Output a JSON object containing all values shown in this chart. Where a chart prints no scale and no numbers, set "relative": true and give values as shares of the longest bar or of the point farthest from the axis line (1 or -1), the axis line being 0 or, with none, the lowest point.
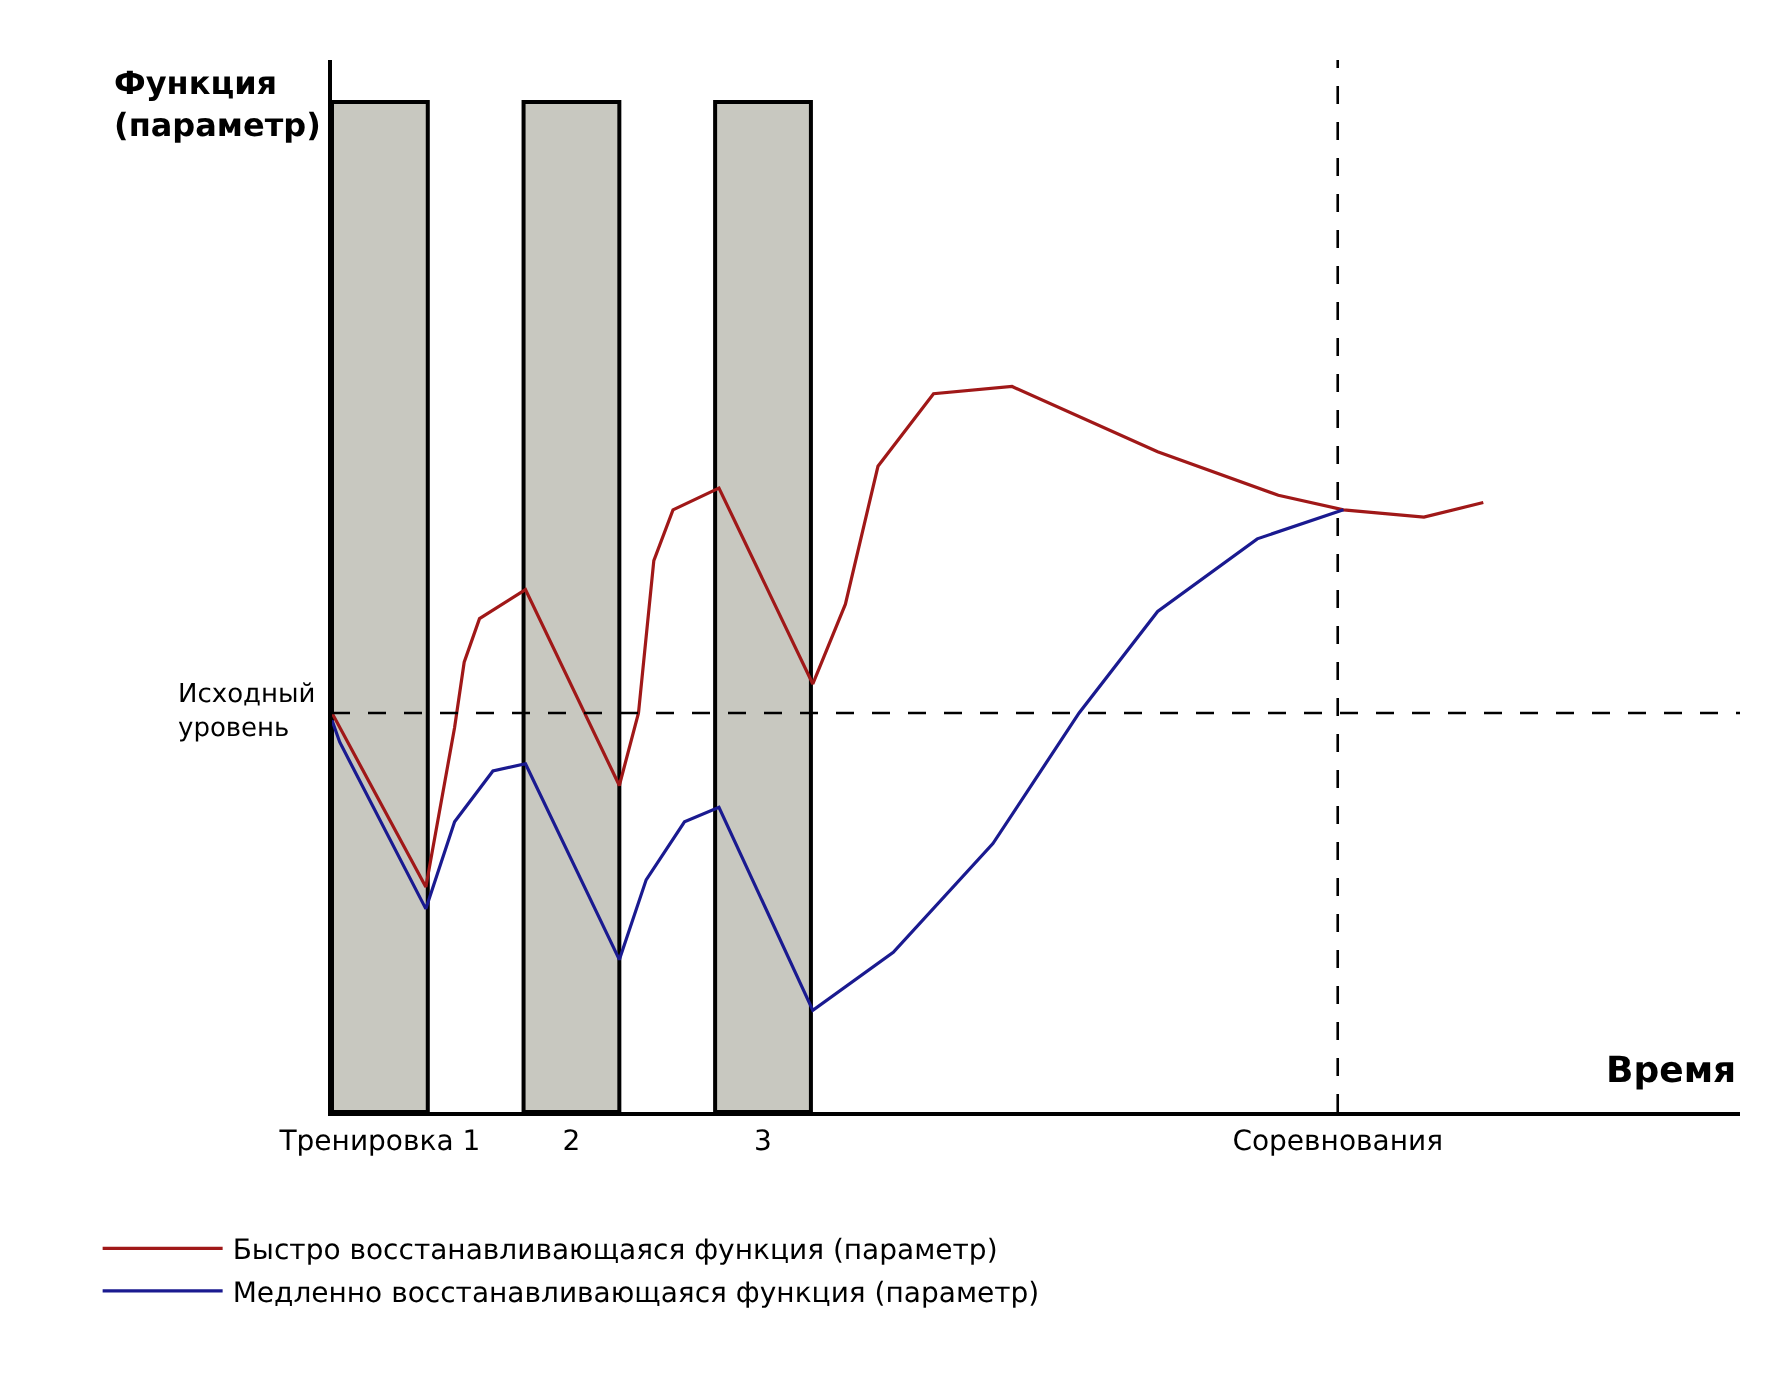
{
  "chart_data": {
    "type": "line",
    "relative": true,
    "xlabel": "Время",
    "annotations": [
      "Функция (параметр)"
    ],
    "xlim": [
      0.75,
      8.1
    ],
    "xticks": [
      {
        "value": 1,
        "label": "Тренировка 1"
      },
      {
        "value": 2,
        "label": "2"
      },
      {
        "value": 3,
        "label": "3"
      },
      {
        "value": 6,
        "label": "Соревнования"
      }
    ],
    "tick_labels": "x",
    "grid": false,
    "legend": "bottom",
    "marker": "none",
    "line_style": "solid",
    "series": [
      {
        "name": "Быстро восстанавливающаяся функция (параметр)",
        "color": "#a01818",
        "x": [
          0.75,
          1.24,
          1.39,
          1.44,
          1.52,
          1.76,
          2.25,
          2.35,
          2.43,
          2.53,
          2.77,
          3.26,
          3.43,
          3.6,
          3.89,
          4.3,
          5.06,
          5.69,
          6.03,
          6.45,
          6.76
        ],
        "values": [
          0.55,
          0.31,
          0.53,
          0.62,
          0.68,
          0.72,
          0.45,
          0.55,
          0.76,
          0.83,
          0.86,
          0.59,
          0.7,
          0.89,
          0.99,
          1.0,
          0.91,
          0.85,
          0.83,
          0.82,
          0.84
        ]
      },
      {
        "name": "Медленно восстанавливающаяся функция (параметр)",
        "color": "#1a1a90",
        "x": [
          0.75,
          0.79,
          1.24,
          1.39,
          1.59,
          1.76,
          2.25,
          2.39,
          2.59,
          2.77,
          3.26,
          3.68,
          4.2,
          4.65,
          5.06,
          5.58,
          6.03
        ],
        "values": [
          0.54,
          0.51,
          0.28,
          0.4,
          0.47,
          0.48,
          0.21,
          0.32,
          0.4,
          0.42,
          0.14,
          0.22,
          0.37,
          0.55,
          0.69,
          0.79,
          0.83
        ]
      }
    ],
    "ref_lines": [
      {
        "axis": "y",
        "value": 0.55,
        "label": "Исходный уровень",
        "line_style": "dashed",
        "color": "#000000"
      },
      {
        "axis": "x",
        "value": 6,
        "label": null,
        "line_style": "dashed",
        "color": "#000000"
      }
    ],
    "bands": [
      {
        "axis": "x",
        "from": 0.75,
        "to": 1.25,
        "label": null,
        "color": "#c8c8c0"
      },
      {
        "axis": "x",
        "from": 1.75,
        "to": 2.25,
        "label": null,
        "color": "#c8c8c0"
      },
      {
        "axis": "x",
        "from": 2.75,
        "to": 3.25,
        "label": null,
        "color": "#c8c8c0"
      }
    ]
  }
}
